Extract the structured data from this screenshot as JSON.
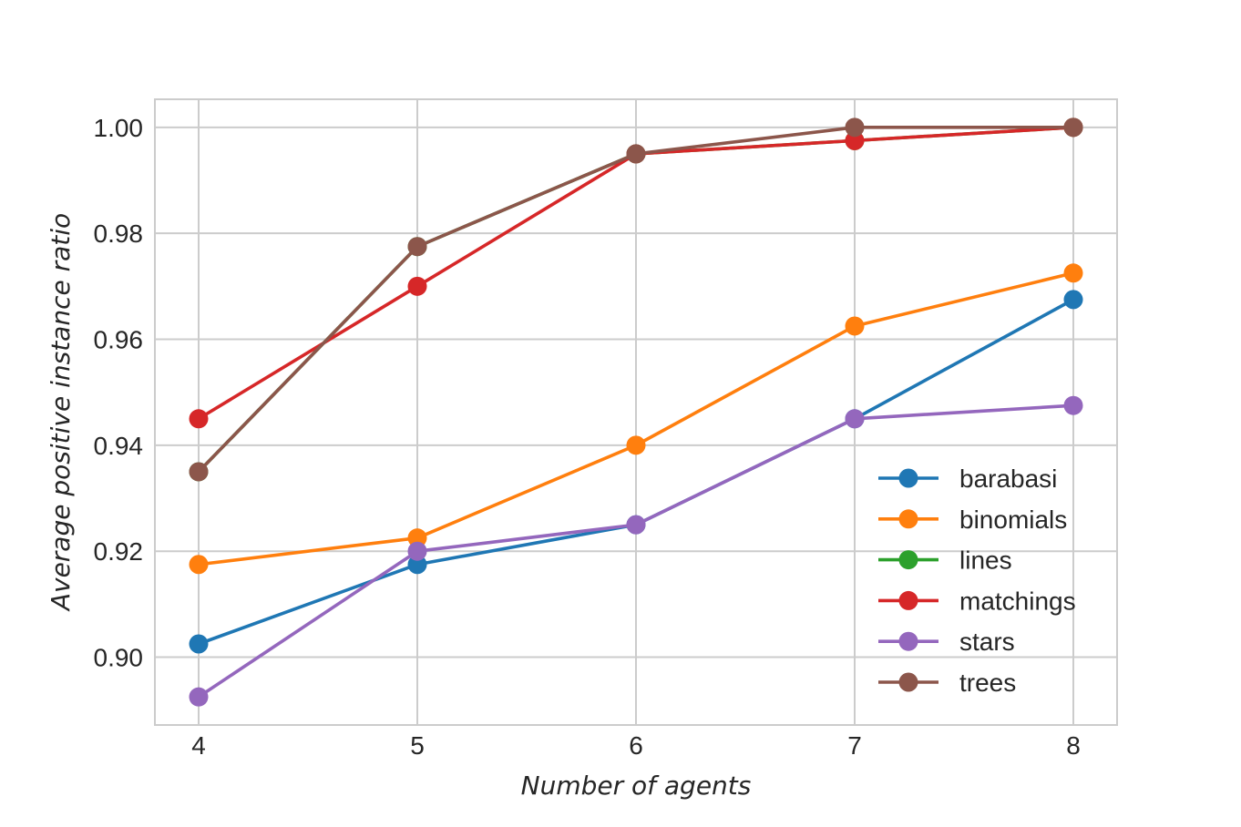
{
  "chart_data": {
    "type": "line",
    "title": "",
    "xlabel": "Number of agents",
    "ylabel": "Average positive instance ratio",
    "x": [
      4,
      5,
      6,
      7,
      8
    ],
    "xlim": [
      3.8,
      8.2
    ],
    "ylim": [
      0.8872,
      1.0053
    ],
    "xticks": [
      4,
      5,
      6,
      7,
      8
    ],
    "yticks": [
      0.9,
      0.92,
      0.94,
      0.96,
      0.98,
      1.0
    ],
    "ytick_labels": [
      "0.90",
      "0.92",
      "0.94",
      "0.96",
      "0.98",
      "1.00"
    ],
    "grid": true,
    "legend_position": "lower-right",
    "series": [
      {
        "name": "barabasi",
        "color": "#1f77b4",
        "values": [
          0.9025,
          0.9175,
          0.925,
          0.945,
          0.9675
        ]
      },
      {
        "name": "binomials",
        "color": "#ff7f0e",
        "values": [
          0.9175,
          0.9225,
          0.94,
          0.9625,
          0.9725
        ]
      },
      {
        "name": "lines",
        "color": "#2ca02c",
        "values": [
          0.935,
          0.9775,
          0.995,
          0.9975,
          1.0
        ]
      },
      {
        "name": "matchings",
        "color": "#d62728",
        "values": [
          0.945,
          0.97,
          0.995,
          0.9975,
          1.0
        ]
      },
      {
        "name": "stars",
        "color": "#9467bd",
        "values": [
          0.8925,
          0.92,
          0.925,
          0.945,
          0.9475
        ]
      },
      {
        "name": "trees",
        "color": "#8c564b",
        "values": [
          0.935,
          0.9775,
          0.995,
          1.0,
          1.0
        ]
      }
    ]
  }
}
